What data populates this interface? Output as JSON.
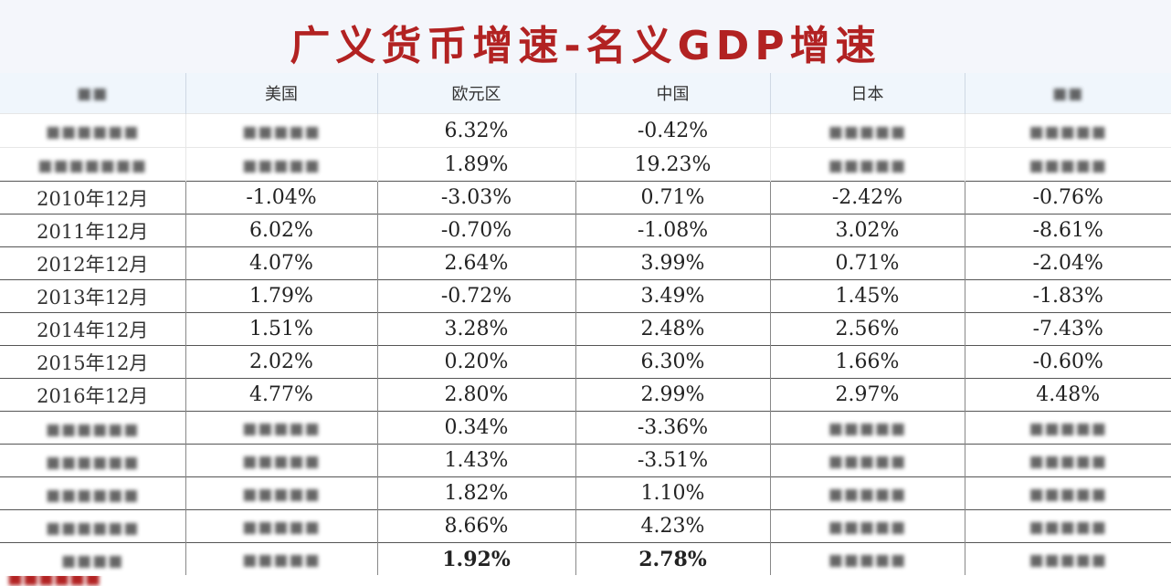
{
  "title": "广义货币增速-名义GDP增速",
  "headers": [
    "",
    "美国",
    "欧元区",
    "中国",
    "日本",
    ""
  ],
  "rows": [
    [
      "",
      "",
      "6.32%",
      "-0.42%",
      "",
      ""
    ],
    [
      "",
      "",
      "1.89%",
      "19.23%",
      "",
      ""
    ],
    [
      "2010年12月",
      "-1.04%",
      "-3.03%",
      "0.71%",
      "-2.42%",
      "-0.76%"
    ],
    [
      "2011年12月",
      "6.02%",
      "-0.70%",
      "-1.08%",
      "3.02%",
      "-8.61%"
    ],
    [
      "2012年12月",
      "4.07%",
      "2.64%",
      "3.99%",
      "0.71%",
      "-2.04%"
    ],
    [
      "2013年12月",
      "1.79%",
      "-0.72%",
      "3.49%",
      "1.45%",
      "-1.83%"
    ],
    [
      "2014年12月",
      "1.51%",
      "3.28%",
      "2.48%",
      "2.56%",
      "-7.43%"
    ],
    [
      "2015年12月",
      "2.02%",
      "0.20%",
      "6.30%",
      "1.66%",
      "-0.60%"
    ],
    [
      "2016年12月",
      "4.77%",
      "2.80%",
      "2.99%",
      "2.97%",
      "4.48%"
    ],
    [
      "",
      "",
      "0.34%",
      "-3.36%",
      "",
      ""
    ],
    [
      "",
      "",
      "1.43%",
      "-3.51%",
      "",
      ""
    ],
    [
      "",
      "",
      "1.82%",
      "1.10%",
      "",
      ""
    ],
    [
      "",
      "",
      "8.66%",
      "4.23%",
      "",
      ""
    ],
    [
      "",
      "",
      "1.92%",
      "2.78%",
      "",
      ""
    ]
  ]
}
